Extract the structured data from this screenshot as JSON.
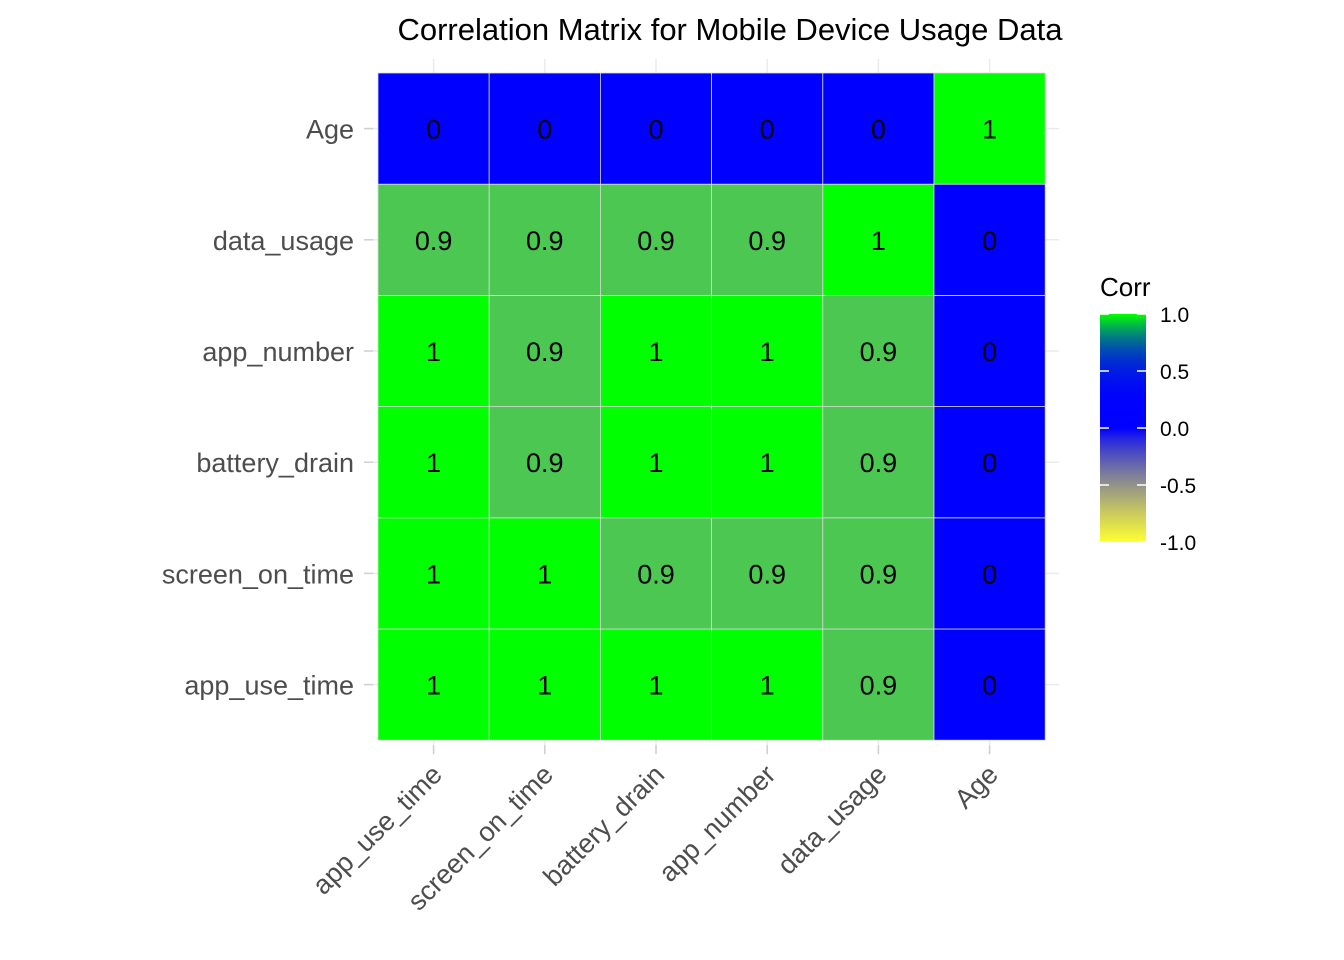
{
  "chart_data": {
    "type": "heatmap",
    "title": "Correlation Matrix for Mobile Device Usage Data",
    "x_categories": [
      "app_use_time",
      "screen_on_time",
      "battery_drain",
      "app_number",
      "data_usage",
      "Age"
    ],
    "y_categories": [
      "app_use_time",
      "screen_on_time",
      "battery_drain",
      "app_number",
      "data_usage",
      "Age"
    ],
    "values": [
      [
        1,
        1,
        1,
        1,
        0.9,
        0
      ],
      [
        1,
        1,
        0.9,
        0.9,
        0.9,
        0
      ],
      [
        1,
        0.9,
        1,
        1,
        0.9,
        0
      ],
      [
        1,
        0.9,
        1,
        1,
        0.9,
        0
      ],
      [
        0.9,
        0.9,
        0.9,
        0.9,
        1,
        0
      ],
      [
        0,
        0,
        0,
        0,
        0,
        1
      ]
    ],
    "value_labels": [
      [
        "1",
        "1",
        "1",
        "1",
        "0.9",
        "0"
      ],
      [
        "1",
        "1",
        "0.9",
        "0.9",
        "0.9",
        "0"
      ],
      [
        "1",
        "0.9",
        "1",
        "1",
        "0.9",
        "0"
      ],
      [
        "1",
        "0.9",
        "1",
        "1",
        "0.9",
        "0"
      ],
      [
        "0.9",
        "0.9",
        "0.9",
        "0.9",
        "1",
        "0"
      ],
      [
        "0",
        "0",
        "0",
        "0",
        "0",
        "1"
      ]
    ],
    "value_range": [
      -1,
      1
    ],
    "colors": {
      "low": "#ffff33",
      "mid": "#0000ff",
      "high": "#00ff00"
    },
    "legend": {
      "title": "Corr",
      "position": "right",
      "ticks": [
        1.0,
        0.5,
        0.0,
        -0.5,
        -1.0
      ],
      "tick_labels": [
        "1.0",
        "0.5",
        "0.0",
        "-0.5",
        "-1.0"
      ]
    },
    "grid": true
  }
}
